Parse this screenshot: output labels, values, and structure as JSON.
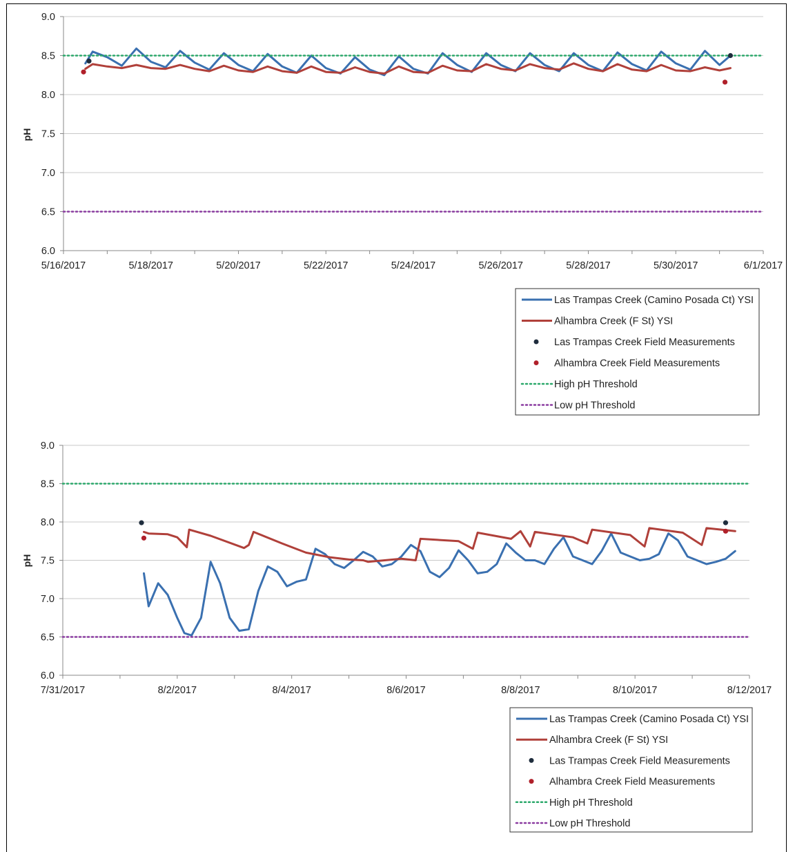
{
  "chart_data": [
    {
      "type": "line",
      "ylabel": "pH",
      "ylim": [
        6.0,
        9.0
      ],
      "y_ticks": [
        "6.0",
        "6.5",
        "7.0",
        "7.5",
        "8.0",
        "8.5",
        "9.0"
      ],
      "x_ticks": [
        "5/16/2017",
        "5/18/2017",
        "5/20/2017",
        "5/22/2017",
        "5/24/2017",
        "5/26/2017",
        "5/28/2017",
        "5/30/2017",
        "6/1/2017"
      ],
      "x_range": [
        "2017-05-16",
        "2017-06-01"
      ],
      "grid": true,
      "legend_placement": "bottom-right",
      "series": [
        {
          "name": "Las Trampas Creek (Camino Posada Ct) YSI",
          "kind": "line",
          "color": "#3a70b0",
          "x": [
            "2017-05-16 12:00",
            "2017-05-16 16:00",
            "2017-05-17 00:00",
            "2017-05-17 08:00",
            "2017-05-17 16:00",
            "2017-05-18 00:00",
            "2017-05-18 08:00",
            "2017-05-18 16:00",
            "2017-05-19 00:00",
            "2017-05-19 08:00",
            "2017-05-19 16:00",
            "2017-05-20 00:00",
            "2017-05-20 08:00",
            "2017-05-20 16:00",
            "2017-05-21 00:00",
            "2017-05-21 08:00",
            "2017-05-21 16:00",
            "2017-05-22 00:00",
            "2017-05-22 08:00",
            "2017-05-22 16:00",
            "2017-05-23 00:00",
            "2017-05-23 08:00",
            "2017-05-23 16:00",
            "2017-05-24 00:00",
            "2017-05-24 08:00",
            "2017-05-24 16:00",
            "2017-05-25 00:00",
            "2017-05-25 08:00",
            "2017-05-25 16:00",
            "2017-05-26 00:00",
            "2017-05-26 08:00",
            "2017-05-26 16:00",
            "2017-05-27 00:00",
            "2017-05-27 08:00",
            "2017-05-27 16:00",
            "2017-05-28 00:00",
            "2017-05-28 08:00",
            "2017-05-28 16:00",
            "2017-05-29 00:00",
            "2017-05-29 08:00",
            "2017-05-29 16:00",
            "2017-05-30 00:00",
            "2017-05-30 08:00",
            "2017-05-30 16:00",
            "2017-05-31 00:00",
            "2017-05-31 06:00"
          ],
          "y": [
            8.4,
            8.55,
            8.48,
            8.37,
            8.59,
            8.42,
            8.35,
            8.56,
            8.41,
            8.32,
            8.53,
            8.38,
            8.3,
            8.52,
            8.36,
            8.28,
            8.5,
            8.34,
            8.27,
            8.48,
            8.32,
            8.25,
            8.49,
            8.33,
            8.27,
            8.53,
            8.38,
            8.29,
            8.53,
            8.38,
            8.3,
            8.53,
            8.38,
            8.3,
            8.53,
            8.38,
            8.3,
            8.54,
            8.39,
            8.31,
            8.55,
            8.4,
            8.32,
            8.56,
            8.38,
            8.5
          ]
        },
        {
          "name": "Alhambra Creek (F St) YSI",
          "kind": "line",
          "color": "#b0403a",
          "x": [
            "2017-05-16 12:00",
            "2017-05-16 16:00",
            "2017-05-17 00:00",
            "2017-05-17 08:00",
            "2017-05-17 16:00",
            "2017-05-18 00:00",
            "2017-05-18 08:00",
            "2017-05-18 16:00",
            "2017-05-19 00:00",
            "2017-05-19 08:00",
            "2017-05-19 16:00",
            "2017-05-20 00:00",
            "2017-05-20 08:00",
            "2017-05-20 16:00",
            "2017-05-21 00:00",
            "2017-05-21 08:00",
            "2017-05-21 16:00",
            "2017-05-22 00:00",
            "2017-05-22 08:00",
            "2017-05-22 16:00",
            "2017-05-23 00:00",
            "2017-05-23 08:00",
            "2017-05-23 16:00",
            "2017-05-24 00:00",
            "2017-05-24 08:00",
            "2017-05-24 16:00",
            "2017-05-25 00:00",
            "2017-05-25 08:00",
            "2017-05-25 16:00",
            "2017-05-26 00:00",
            "2017-05-26 08:00",
            "2017-05-26 16:00",
            "2017-05-27 00:00",
            "2017-05-27 08:00",
            "2017-05-27 16:00",
            "2017-05-28 00:00",
            "2017-05-28 08:00",
            "2017-05-28 16:00",
            "2017-05-29 00:00",
            "2017-05-29 08:00",
            "2017-05-29 16:00",
            "2017-05-30 00:00",
            "2017-05-30 08:00",
            "2017-05-30 16:00",
            "2017-05-31 00:00",
            "2017-05-31 06:00"
          ],
          "y": [
            8.33,
            8.39,
            8.36,
            8.34,
            8.38,
            8.34,
            8.33,
            8.38,
            8.33,
            8.3,
            8.37,
            8.31,
            8.29,
            8.36,
            8.3,
            8.28,
            8.36,
            8.29,
            8.28,
            8.35,
            8.29,
            8.27,
            8.36,
            8.29,
            8.28,
            8.37,
            8.31,
            8.3,
            8.39,
            8.33,
            8.31,
            8.39,
            8.34,
            8.32,
            8.4,
            8.33,
            8.3,
            8.39,
            8.32,
            8.3,
            8.38,
            8.31,
            8.3,
            8.35,
            8.31,
            8.34
          ]
        },
        {
          "name": "Las Trampas Creek Field Measurements",
          "kind": "points",
          "color": "#1f2d3d",
          "x": [
            "2017-05-16 14:00",
            "2017-05-31 06:00"
          ],
          "y": [
            8.43,
            8.5
          ]
        },
        {
          "name": "Alhambra Creek Field Measurements",
          "kind": "points",
          "color": "#b0202a",
          "x": [
            "2017-05-16 11:00",
            "2017-05-31 03:00"
          ],
          "y": [
            8.29,
            8.16
          ]
        },
        {
          "name": "High pH Threshold",
          "kind": "hline",
          "color": "#2aa86a",
          "y": 8.5
        },
        {
          "name": "Low pH Threshold",
          "kind": "hline",
          "color": "#8a3aa0",
          "y": 6.5
        }
      ]
    },
    {
      "type": "line",
      "ylabel": "pH",
      "ylim": [
        6.0,
        9.0
      ],
      "y_ticks": [
        "6.0",
        "6.5",
        "7.0",
        "7.5",
        "8.0",
        "8.5",
        "9.0"
      ],
      "x_ticks": [
        "7/31/2017",
        "8/2/2017",
        "8/4/2017",
        "8/6/2017",
        "8/8/2017",
        "8/10/2017",
        "8/12/2017"
      ],
      "x_range": [
        "2017-07-31",
        "2017-08-12"
      ],
      "grid": true,
      "legend_placement": "bottom-right",
      "series": [
        {
          "name": "Las Trampas Creek (Camino Posada Ct) YSI",
          "kind": "line",
          "color": "#3a70b0",
          "x": [
            "2017-08-01 10:00",
            "2017-08-01 12:00",
            "2017-08-01 16:00",
            "2017-08-01 20:00",
            "2017-08-02 00:00",
            "2017-08-02 03:00",
            "2017-08-02 06:00",
            "2017-08-02 10:00",
            "2017-08-02 14:00",
            "2017-08-02 18:00",
            "2017-08-02 22:00",
            "2017-08-03 02:00",
            "2017-08-03 06:00",
            "2017-08-03 10:00",
            "2017-08-03 14:00",
            "2017-08-03 18:00",
            "2017-08-03 22:00",
            "2017-08-04 02:00",
            "2017-08-04 06:00",
            "2017-08-04 10:00",
            "2017-08-04 14:00",
            "2017-08-04 18:00",
            "2017-08-04 22:00",
            "2017-08-05 02:00",
            "2017-08-05 06:00",
            "2017-08-05 10:00",
            "2017-08-05 14:00",
            "2017-08-05 18:00",
            "2017-08-05 22:00",
            "2017-08-06 02:00",
            "2017-08-06 06:00",
            "2017-08-06 10:00",
            "2017-08-06 14:00",
            "2017-08-06 18:00",
            "2017-08-06 22:00",
            "2017-08-07 02:00",
            "2017-08-07 06:00",
            "2017-08-07 10:00",
            "2017-08-07 14:00",
            "2017-08-07 18:00",
            "2017-08-07 22:00",
            "2017-08-08 02:00",
            "2017-08-08 06:00",
            "2017-08-08 10:00",
            "2017-08-08 14:00",
            "2017-08-08 18:00",
            "2017-08-08 22:00",
            "2017-08-09 02:00",
            "2017-08-09 06:00",
            "2017-08-09 10:00",
            "2017-08-09 14:00",
            "2017-08-09 18:00",
            "2017-08-09 22:00",
            "2017-08-10 02:00",
            "2017-08-10 06:00",
            "2017-08-10 10:00",
            "2017-08-10 14:00",
            "2017-08-10 18:00",
            "2017-08-10 22:00",
            "2017-08-11 02:00",
            "2017-08-11 06:00",
            "2017-08-11 10:00",
            "2017-08-11 14:00",
            "2017-08-11 18:00"
          ],
          "y": [
            7.33,
            6.9,
            7.2,
            7.05,
            6.75,
            6.55,
            6.52,
            6.75,
            7.48,
            7.2,
            6.75,
            6.58,
            6.6,
            7.1,
            7.42,
            7.35,
            7.16,
            7.22,
            7.25,
            7.65,
            7.58,
            7.45,
            7.4,
            7.5,
            7.61,
            7.55,
            7.42,
            7.45,
            7.55,
            7.7,
            7.62,
            7.35,
            7.28,
            7.4,
            7.63,
            7.5,
            7.33,
            7.35,
            7.45,
            7.72,
            7.6,
            7.5,
            7.5,
            7.45,
            7.65,
            7.8,
            7.55,
            7.5,
            7.45,
            7.62,
            7.85,
            7.6,
            7.55,
            7.5,
            7.52,
            7.58,
            7.85,
            7.76,
            7.55,
            7.5,
            7.45,
            7.48,
            7.52,
            7.62
          ]
        },
        {
          "name": "Alhambra Creek (F St) YSI",
          "kind": "line",
          "color": "#b0403a",
          "x": [
            "2017-08-01 10:00",
            "2017-08-01 12:00",
            "2017-08-01 20:00",
            "2017-08-02 00:00",
            "2017-08-02 04:00",
            "2017-08-02 05:00",
            "2017-08-02 14:00",
            "2017-08-03 04:00",
            "2017-08-03 06:00",
            "2017-08-03 08:00",
            "2017-08-03 20:00",
            "2017-08-04 06:00",
            "2017-08-04 16:00",
            "2017-08-05 00:00",
            "2017-08-05 06:00",
            "2017-08-05 08:00",
            "2017-08-05 22:00",
            "2017-08-06 04:00",
            "2017-08-06 06:00",
            "2017-08-06 22:00",
            "2017-08-07 04:00",
            "2017-08-07 06:00",
            "2017-08-07 20:00",
            "2017-08-08 00:00",
            "2017-08-08 04:00",
            "2017-08-08 06:00",
            "2017-08-08 22:00",
            "2017-08-09 04:00",
            "2017-08-09 06:00",
            "2017-08-09 22:00",
            "2017-08-10 04:00",
            "2017-08-10 06:00",
            "2017-08-10 20:00",
            "2017-08-11 04:00",
            "2017-08-11 06:00",
            "2017-08-11 18:00"
          ],
          "y": [
            7.87,
            7.85,
            7.84,
            7.8,
            7.67,
            7.9,
            7.82,
            7.66,
            7.7,
            7.87,
            7.72,
            7.6,
            7.54,
            7.51,
            7.5,
            7.48,
            7.52,
            7.5,
            7.78,
            7.75,
            7.65,
            7.86,
            7.78,
            7.88,
            7.68,
            7.87,
            7.8,
            7.72,
            7.9,
            7.83,
            7.68,
            7.92,
            7.86,
            7.7,
            7.92,
            7.88
          ]
        },
        {
          "name": "Las Trampas Creek Field Measurements",
          "kind": "points",
          "color": "#1f2d3d",
          "x": [
            "2017-08-01 09:00",
            "2017-08-11 14:00"
          ],
          "y": [
            7.99,
            7.99
          ]
        },
        {
          "name": "Alhambra Creek Field Measurements",
          "kind": "points",
          "color": "#b0202a",
          "x": [
            "2017-08-01 10:00",
            "2017-08-11 14:00"
          ],
          "y": [
            7.79,
            7.88
          ]
        },
        {
          "name": "High pH Threshold",
          "kind": "hline",
          "color": "#2aa86a",
          "y": 8.5
        },
        {
          "name": "Low pH Threshold",
          "kind": "hline",
          "color": "#8a3aa0",
          "y": 6.5
        }
      ]
    }
  ]
}
